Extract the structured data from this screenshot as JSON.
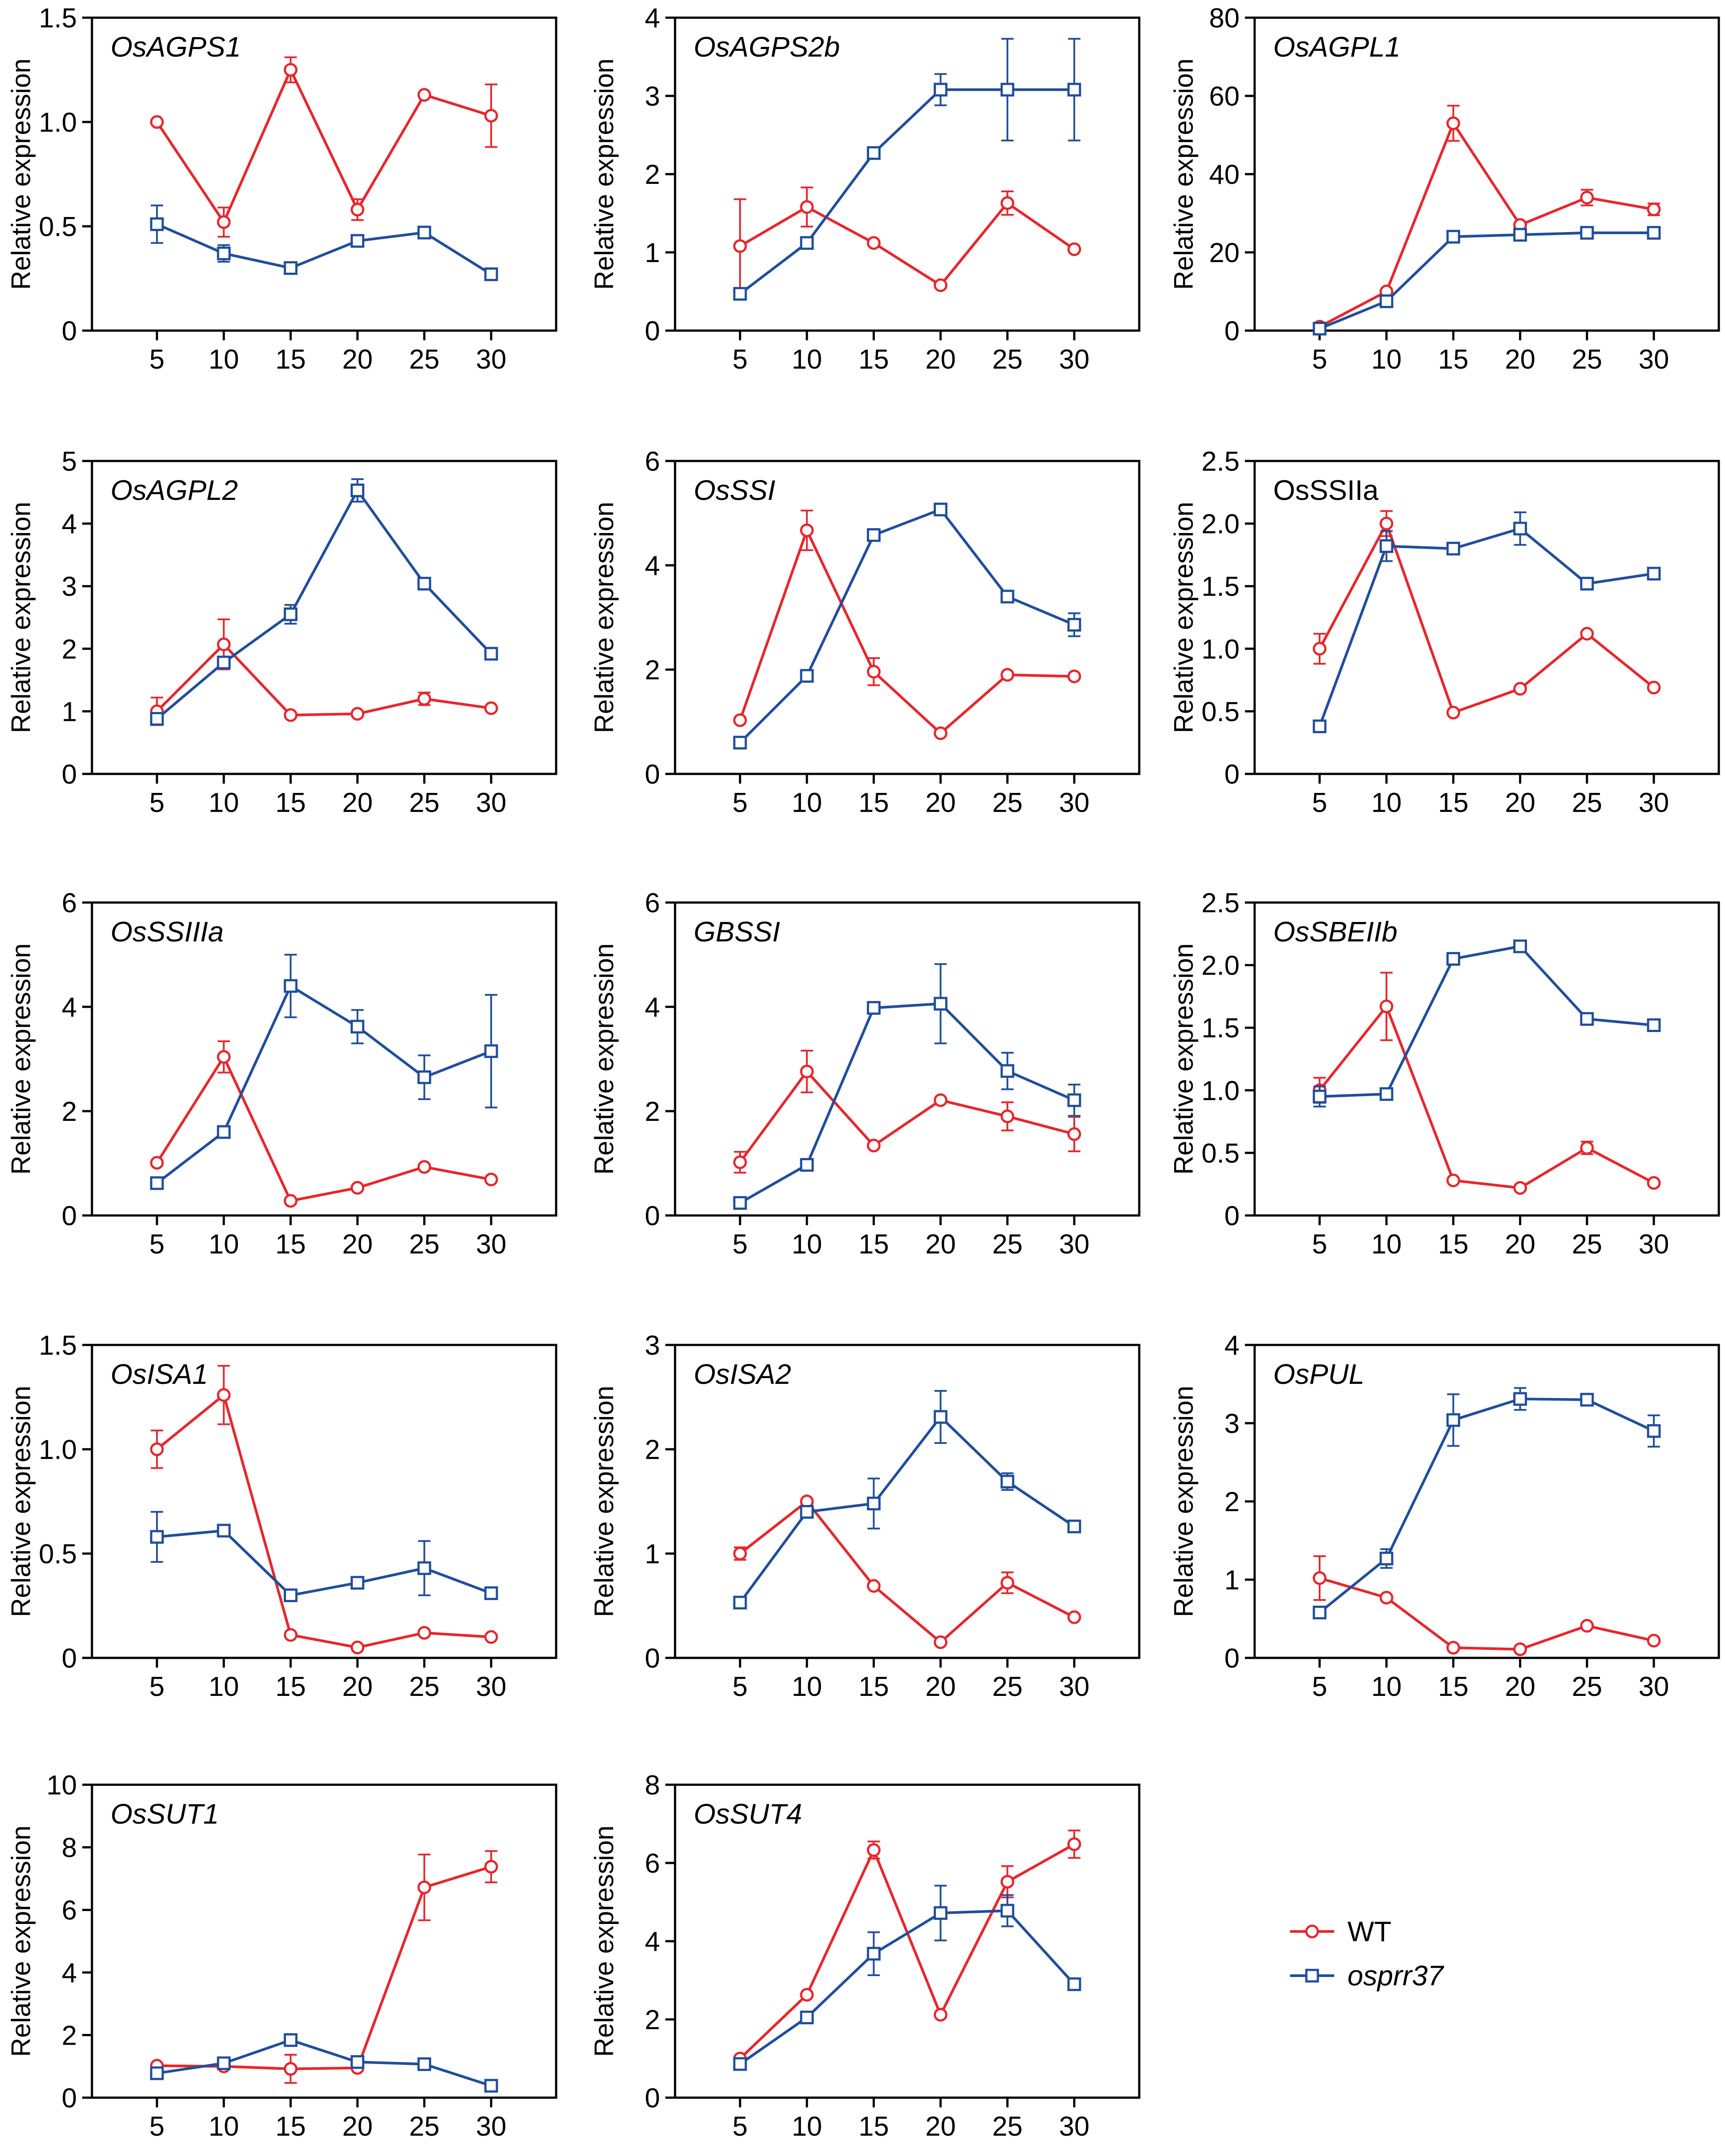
{
  "colors": {
    "wt": "#e8262b",
    "mutant": "#1f4e9c",
    "frame": "#000000"
  },
  "legend": {
    "items": [
      {
        "label": "WT",
        "series": "wt",
        "marker": "circle"
      },
      {
        "label": "osprr37",
        "series": "mutant",
        "marker": "square",
        "italic": true
      }
    ]
  },
  "chart_data": [
    {
      "type": "line",
      "title": "OsAGPS1",
      "title_italic": true,
      "ylabel": "Relative expression",
      "x": [
        5,
        10,
        15,
        20,
        25,
        30
      ],
      "xticks": [
        "5",
        "10",
        "15",
        "20",
        "25",
        "30"
      ],
      "ylim": [
        0,
        1.5
      ],
      "yticks": [
        "0",
        "0.5",
        "1.0",
        "1.5"
      ],
      "ytick_values": [
        0,
        0.5,
        1.0,
        1.5
      ],
      "series": [
        {
          "name": "WT",
          "key": "wt",
          "values": [
            1.0,
            0.52,
            1.25,
            0.58,
            1.13,
            1.03
          ],
          "errors": [
            0,
            0.07,
            0.06,
            0.05,
            0,
            0.15
          ]
        },
        {
          "name": "osprr37",
          "key": "mutant",
          "values": [
            0.51,
            0.37,
            0.3,
            0.43,
            0.47,
            0.27
          ],
          "errors": [
            0.09,
            0.04,
            0,
            0,
            0,
            0
          ]
        }
      ]
    },
    {
      "type": "line",
      "title": "OsAGPS2b",
      "title_italic": true,
      "ylabel": "Relative expression",
      "x": [
        5,
        10,
        15,
        20,
        25,
        30
      ],
      "xticks": [
        "5",
        "10",
        "15",
        "20",
        "25",
        "30"
      ],
      "ylim": [
        0,
        4
      ],
      "yticks": [
        "0",
        "1",
        "2",
        "3",
        "4"
      ],
      "ytick_values": [
        0,
        1,
        2,
        3,
        4
      ],
      "series": [
        {
          "name": "WT",
          "key": "wt",
          "values": [
            1.08,
            1.58,
            1.12,
            0.58,
            1.63,
            1.04
          ],
          "errors": [
            0.6,
            0.25,
            0,
            0,
            0.15,
            0
          ]
        },
        {
          "name": "osprr37",
          "key": "mutant",
          "values": [
            0.47,
            1.12,
            2.27,
            3.08,
            3.08,
            3.08
          ],
          "errors": [
            0,
            0,
            0,
            0.2,
            0.65,
            0.65
          ]
        }
      ]
    },
    {
      "type": "line",
      "title": "OsAGPL1",
      "title_italic": true,
      "ylabel": "Relative expression",
      "x": [
        5,
        10,
        15,
        20,
        25,
        30
      ],
      "xticks": [
        "5",
        "10",
        "15",
        "20",
        "25",
        "30"
      ],
      "ylim": [
        0,
        80
      ],
      "yticks": [
        "0",
        "20",
        "40",
        "60",
        "80"
      ],
      "ytick_values": [
        0,
        20,
        40,
        60,
        80
      ],
      "series": [
        {
          "name": "WT",
          "key": "wt",
          "values": [
            1,
            10,
            53,
            27,
            34,
            31
          ],
          "errors": [
            0,
            0,
            4.5,
            0,
            2,
            1.5
          ]
        },
        {
          "name": "osprr37",
          "key": "mutant",
          "values": [
            0.5,
            7.5,
            24,
            24.5,
            25,
            25
          ],
          "errors": [
            0,
            0,
            1.5,
            0,
            0,
            0
          ]
        }
      ]
    },
    {
      "type": "line",
      "title": "OsAGPL2",
      "title_italic": true,
      "ylabel": "Relative expression",
      "x": [
        5,
        10,
        15,
        20,
        25,
        30
      ],
      "xticks": [
        "5",
        "10",
        "15",
        "20",
        "25",
        "30"
      ],
      "ylim": [
        0,
        5
      ],
      "yticks": [
        "0",
        "1",
        "2",
        "3",
        "4",
        "5"
      ],
      "ytick_values": [
        0,
        1,
        2,
        3,
        4,
        5
      ],
      "series": [
        {
          "name": "WT",
          "key": "wt",
          "values": [
            1.0,
            2.07,
            0.94,
            0.96,
            1.2,
            1.05
          ],
          "errors": [
            0.22,
            0.4,
            0,
            0,
            0.1,
            0
          ]
        },
        {
          "name": "osprr37",
          "key": "mutant",
          "values": [
            0.88,
            1.78,
            2.55,
            4.53,
            3.04,
            1.92
          ],
          "errors": [
            0,
            0,
            0.15,
            0.18,
            0,
            0
          ]
        }
      ]
    },
    {
      "type": "line",
      "title": "OsSSI",
      "title_italic": true,
      "ylabel": "Relative expression",
      "x": [
        5,
        10,
        15,
        20,
        25,
        30
      ],
      "xticks": [
        "5",
        "10",
        "15",
        "20",
        "25",
        "30"
      ],
      "ylim": [
        0,
        6
      ],
      "yticks": [
        "0",
        "2",
        "4",
        "6"
      ],
      "ytick_values": [
        0,
        2,
        4,
        6
      ],
      "series": [
        {
          "name": "WT",
          "key": "wt",
          "values": [
            1.03,
            4.67,
            1.96,
            0.78,
            1.9,
            1.87
          ],
          "errors": [
            0,
            0.38,
            0.26,
            0,
            0,
            0
          ]
        },
        {
          "name": "osprr37",
          "key": "mutant",
          "values": [
            0.6,
            1.88,
            4.58,
            5.07,
            3.4,
            2.86
          ],
          "errors": [
            0,
            0,
            0,
            0.1,
            0,
            0.22
          ]
        }
      ]
    },
    {
      "type": "line",
      "title": "OsSSIIa",
      "title_italic": false,
      "ylabel": "Relative expression",
      "x": [
        5,
        10,
        15,
        20,
        25,
        30
      ],
      "xticks": [
        "5",
        "10",
        "15",
        "20",
        "25",
        "30"
      ],
      "ylim": [
        0,
        2.5
      ],
      "yticks": [
        "0",
        "0.5",
        "1.0",
        "1.5",
        "2.0",
        "2.5"
      ],
      "ytick_values": [
        0,
        0.5,
        1.0,
        1.5,
        2.0,
        2.5
      ],
      "series": [
        {
          "name": "WT",
          "key": "wt",
          "values": [
            1.0,
            2.0,
            0.49,
            0.68,
            1.12,
            0.69
          ],
          "errors": [
            0.12,
            0.1,
            0,
            0,
            0,
            0
          ]
        },
        {
          "name": "osprr37",
          "key": "mutant",
          "values": [
            0.38,
            1.82,
            1.8,
            1.96,
            1.52,
            1.6
          ],
          "errors": [
            0,
            0.12,
            0,
            0.13,
            0,
            0
          ]
        }
      ]
    },
    {
      "type": "line",
      "title": "OsSSIIIa",
      "title_italic": true,
      "ylabel": "Relative expression",
      "x": [
        5,
        10,
        15,
        20,
        25,
        30
      ],
      "xticks": [
        "5",
        "10",
        "15",
        "20",
        "25",
        "30"
      ],
      "ylim": [
        0,
        6
      ],
      "yticks": [
        "0",
        "2",
        "4",
        "6"
      ],
      "ytick_values": [
        0,
        2,
        4,
        6
      ],
      "series": [
        {
          "name": "WT",
          "key": "wt",
          "values": [
            1.01,
            3.04,
            0.28,
            0.53,
            0.93,
            0.69
          ],
          "errors": [
            0,
            0.3,
            0,
            0,
            0,
            0
          ]
        },
        {
          "name": "osprr37",
          "key": "mutant",
          "values": [
            0.62,
            1.6,
            4.4,
            3.62,
            2.65,
            3.15
          ],
          "errors": [
            0,
            0,
            0.6,
            0.32,
            0.42,
            1.08
          ]
        }
      ]
    },
    {
      "type": "line",
      "title": "GBSSI",
      "title_italic": true,
      "ylabel": "Relative expression",
      "x": [
        5,
        10,
        15,
        20,
        25,
        30
      ],
      "xticks": [
        "5",
        "10",
        "15",
        "20",
        "25",
        "30"
      ],
      "ylim": [
        0,
        6
      ],
      "yticks": [
        "0",
        "2",
        "4",
        "6"
      ],
      "ytick_values": [
        0,
        2,
        4,
        6
      ],
      "series": [
        {
          "name": "WT",
          "key": "wt",
          "values": [
            1.02,
            2.76,
            1.34,
            2.21,
            1.9,
            1.56
          ],
          "errors": [
            0.2,
            0.4,
            0,
            0,
            0.27,
            0.33
          ]
        },
        {
          "name": "osprr37",
          "key": "mutant",
          "values": [
            0.24,
            0.97,
            3.98,
            4.06,
            2.77,
            2.21
          ],
          "errors": [
            0,
            0,
            0,
            0.76,
            0.35,
            0.3
          ]
        }
      ]
    },
    {
      "type": "line",
      "title": "OsSBEIIb",
      "title_italic": true,
      "ylabel": "Relative expression",
      "x": [
        5,
        10,
        15,
        20,
        25,
        30
      ],
      "xticks": [
        "5",
        "10",
        "15",
        "20",
        "25",
        "30"
      ],
      "ylim": [
        0,
        2.5
      ],
      "yticks": [
        "0",
        "0.5",
        "1.0",
        "1.5",
        "2.0",
        "2.5"
      ],
      "ytick_values": [
        0,
        0.5,
        1.0,
        1.5,
        2.0,
        2.5
      ],
      "series": [
        {
          "name": "WT",
          "key": "wt",
          "values": [
            1.0,
            1.67,
            0.28,
            0.22,
            0.54,
            0.26
          ],
          "errors": [
            0.1,
            0.27,
            0,
            0,
            0.05,
            0
          ]
        },
        {
          "name": "osprr37",
          "key": "mutant",
          "values": [
            0.95,
            0.97,
            2.05,
            2.15,
            1.57,
            1.52
          ],
          "errors": [
            0.08,
            0,
            0,
            0.04,
            0,
            0
          ]
        }
      ]
    },
    {
      "type": "line",
      "title": "OsISA1",
      "title_italic": true,
      "ylabel": "Relative expression",
      "x": [
        5,
        10,
        15,
        20,
        25,
        30
      ],
      "xticks": [
        "5",
        "10",
        "15",
        "20",
        "25",
        "30"
      ],
      "ylim": [
        0,
        1.5
      ],
      "yticks": [
        "0",
        "0.5",
        "1.0",
        "1.5"
      ],
      "ytick_values": [
        0,
        0.5,
        1.0,
        1.5
      ],
      "series": [
        {
          "name": "WT",
          "key": "wt",
          "values": [
            1.0,
            1.26,
            0.11,
            0.05,
            0.12,
            0.1
          ],
          "errors": [
            0.09,
            0.14,
            0,
            0,
            0,
            0
          ]
        },
        {
          "name": "osprr37",
          "key": "mutant",
          "values": [
            0.58,
            0.61,
            0.3,
            0.36,
            0.43,
            0.31
          ],
          "errors": [
            0.12,
            0,
            0,
            0,
            0.13,
            0
          ]
        }
      ]
    },
    {
      "type": "line",
      "title": "OsISA2",
      "title_italic": true,
      "ylabel": "Relative expression",
      "x": [
        5,
        10,
        15,
        20,
        25,
        30
      ],
      "xticks": [
        "5",
        "10",
        "15",
        "20",
        "25",
        "30"
      ],
      "ylim": [
        0,
        3
      ],
      "yticks": [
        "0",
        "1",
        "2",
        "3"
      ],
      "ytick_values": [
        0,
        1,
        2,
        3
      ],
      "series": [
        {
          "name": "WT",
          "key": "wt",
          "values": [
            1.0,
            1.5,
            0.69,
            0.15,
            0.72,
            0.39
          ],
          "errors": [
            0.06,
            0,
            0,
            0,
            0.1,
            0
          ]
        },
        {
          "name": "osprr37",
          "key": "mutant",
          "values": [
            0.53,
            1.4,
            1.48,
            2.31,
            1.69,
            1.26
          ],
          "errors": [
            0,
            0,
            0.24,
            0.25,
            0.08,
            0
          ]
        }
      ]
    },
    {
      "type": "line",
      "title": "OsPUL",
      "title_italic": true,
      "ylabel": "Relative expression",
      "x": [
        5,
        10,
        15,
        20,
        25,
        30
      ],
      "xticks": [
        "5",
        "10",
        "15",
        "20",
        "25",
        "30"
      ],
      "ylim": [
        0,
        4
      ],
      "yticks": [
        "0",
        "1",
        "2",
        "3",
        "4"
      ],
      "ytick_values": [
        0,
        1,
        2,
        3,
        4
      ],
      "series": [
        {
          "name": "WT",
          "key": "wt",
          "values": [
            1.02,
            0.77,
            0.13,
            0.11,
            0.41,
            0.22
          ],
          "errors": [
            0.28,
            0,
            0,
            0,
            0,
            0
          ]
        },
        {
          "name": "osprr37",
          "key": "mutant",
          "values": [
            0.58,
            1.27,
            3.04,
            3.31,
            3.3,
            2.9
          ],
          "errors": [
            0,
            0.12,
            0.33,
            0.14,
            0,
            0.2
          ]
        }
      ]
    },
    {
      "type": "line",
      "title": "OsSUT1",
      "title_italic": true,
      "ylabel": "Relative expression",
      "x": [
        5,
        10,
        15,
        20,
        25,
        30
      ],
      "xticks": [
        "5",
        "10",
        "15",
        "20",
        "25",
        "30"
      ],
      "ylim": [
        0,
        10
      ],
      "yticks": [
        "0",
        "2",
        "4",
        "6",
        "8",
        "10"
      ],
      "ytick_values": [
        0,
        2,
        4,
        6,
        8,
        10
      ],
      "series": [
        {
          "name": "WT",
          "key": "wt",
          "values": [
            1.02,
            1.0,
            0.92,
            0.95,
            6.72,
            7.38
          ],
          "errors": [
            0,
            0,
            0.45,
            0,
            1.05,
            0.5
          ]
        },
        {
          "name": "osprr37",
          "key": "mutant",
          "values": [
            0.78,
            1.1,
            1.84,
            1.14,
            1.07,
            0.38
          ],
          "errors": [
            0,
            0,
            0,
            0,
            0,
            0
          ]
        }
      ]
    },
    {
      "type": "line",
      "title": "OsSUT4",
      "title_italic": true,
      "ylabel": "Relative expression",
      "x": [
        5,
        10,
        15,
        20,
        25,
        30
      ],
      "xticks": [
        "5",
        "10",
        "15",
        "20",
        "25",
        "30"
      ],
      "ylim": [
        0,
        8
      ],
      "yticks": [
        "0",
        "2",
        "4",
        "6",
        "8"
      ],
      "ytick_values": [
        0,
        2,
        4,
        6,
        8
      ],
      "series": [
        {
          "name": "WT",
          "key": "wt",
          "values": [
            1.0,
            2.63,
            6.33,
            2.12,
            5.52,
            6.48
          ],
          "errors": [
            0,
            0,
            0.22,
            0,
            0.4,
            0.35
          ]
        },
        {
          "name": "osprr37",
          "key": "mutant",
          "values": [
            0.86,
            2.05,
            3.68,
            4.72,
            4.78,
            2.9
          ],
          "errors": [
            0,
            0,
            0.55,
            0.7,
            0.4,
            0
          ]
        }
      ]
    }
  ]
}
